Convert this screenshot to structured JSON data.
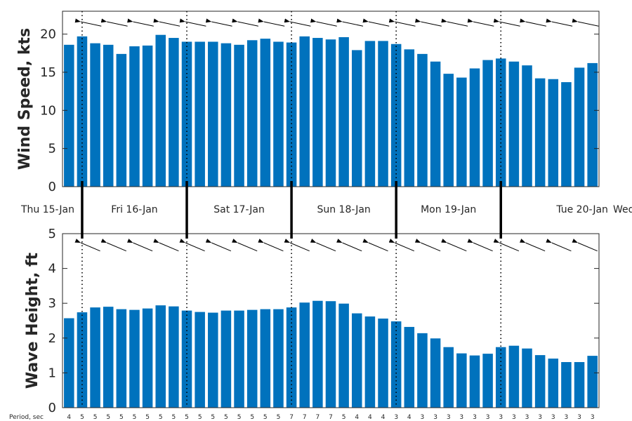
{
  "chart_data": [
    {
      "type": "bar",
      "ylabel": "Wind Speed, kts",
      "ylim": [
        0,
        23
      ],
      "yticks": [
        0,
        5,
        10,
        15,
        20
      ],
      "color": "#0072BD",
      "values": [
        18.6,
        19.7,
        18.8,
        18.6,
        17.4,
        18.4,
        18.5,
        19.9,
        19.5,
        19.0,
        19.0,
        19.0,
        18.8,
        18.6,
        19.2,
        19.4,
        19.0,
        18.9,
        19.7,
        19.5,
        19.3,
        19.6,
        17.9,
        19.1,
        19.1,
        18.7,
        18.0,
        17.4,
        16.4,
        14.8,
        14.3,
        15.5,
        16.6,
        16.8,
        16.4,
        15.9,
        14.2,
        14.1,
        13.7,
        15.6,
        16.2
      ],
      "direction_arrows": "arrows pointing roughly west at each 3-hour step"
    },
    {
      "type": "bar",
      "ylabel": "Wave Height, ft",
      "ylim": [
        0,
        5
      ],
      "yticks": [
        0,
        1,
        2,
        3,
        4,
        5
      ],
      "color": "#0072BD",
      "values": [
        2.57,
        2.74,
        2.88,
        2.9,
        2.83,
        2.81,
        2.85,
        2.94,
        2.91,
        2.79,
        2.75,
        2.73,
        2.79,
        2.79,
        2.81,
        2.83,
        2.83,
        2.88,
        3.02,
        3.07,
        3.06,
        2.99,
        2.71,
        2.62,
        2.56,
        2.48,
        2.32,
        2.14,
        1.99,
        1.74,
        1.56,
        1.5,
        1.55,
        1.74,
        1.78,
        1.7,
        1.51,
        1.41,
        1.31,
        1.31,
        1.49
      ],
      "direction_arrows": "arrows pointing west-northwest at each 3-hour step"
    }
  ],
  "day_labels": [
    "Thu 15-Jan",
    "Fri 16-Jan",
    "Sat 17-Jan",
    "Sun 18-Jan",
    "Mon 19-Jan",
    "Tue 20-Jan",
    "Wed"
  ],
  "period_label": "Period, sec",
  "periods": [
    "4",
    "5",
    "5",
    "5",
    "5",
    "5",
    "5",
    "5",
    "5",
    "5",
    "5",
    "5",
    "5",
    "5",
    "5",
    "5",
    "5",
    "7",
    "7",
    "7",
    "7",
    "5",
    "4",
    "4",
    "4",
    "3",
    "4",
    "3",
    "3",
    "3",
    "3",
    "3",
    "3",
    "3",
    "3",
    "3",
    "3",
    "3",
    "3",
    "3",
    "3"
  ],
  "day_starts": [
    1,
    9,
    17,
    25,
    33
  ]
}
